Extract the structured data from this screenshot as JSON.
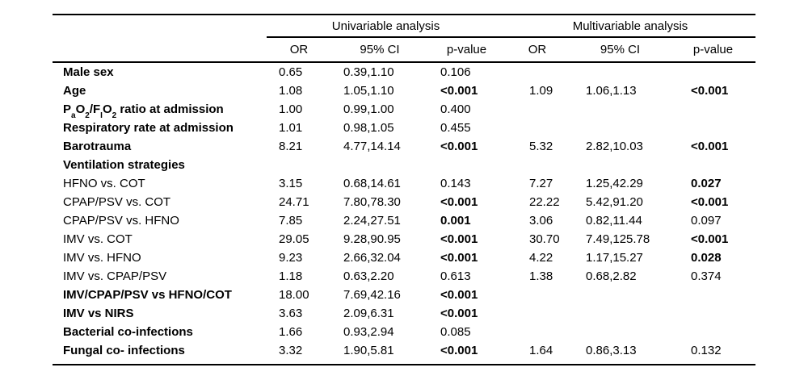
{
  "page": {
    "background_color": "#ffffff",
    "text_color": "#000000",
    "rule_color": "#000000"
  },
  "table": {
    "group_headers": [
      {
        "label": "Univariable analysis",
        "span": 3
      },
      {
        "label": "Multivariable analysis",
        "span": 3
      }
    ],
    "column_headers": [
      "OR",
      "95% CI",
      "p-value",
      "OR",
      "95% CI",
      "p-value"
    ],
    "rows": [
      {
        "label": "Male sex",
        "bold": true,
        "uni": {
          "or": "0.65",
          "ci": "0.39,1.10",
          "p": "0.106",
          "p_bold": false
        },
        "multi": {
          "or": "",
          "ci": "",
          "p": "",
          "p_bold": false
        }
      },
      {
        "label": "Age",
        "bold": true,
        "uni": {
          "or": "1.08",
          "ci": "1.05,1.10",
          "p": "<0.001",
          "p_bold": true
        },
        "multi": {
          "or": "1.09",
          "ci": "1.06,1.13",
          "p": "<0.001",
          "p_bold": true
        }
      },
      {
        "label": "PaO2/FIO2 ratio at admission",
        "bold": true,
        "label_segments": [
          {
            "text": "P"
          },
          {
            "text": "a",
            "sub": true
          },
          {
            "text": "O"
          },
          {
            "text": "2",
            "sub": true
          },
          {
            "text": "/F"
          },
          {
            "text": "I",
            "sub": true
          },
          {
            "text": "O"
          },
          {
            "text": "2",
            "sub": true
          },
          {
            "text": " ratio at admission"
          }
        ],
        "uni": {
          "or": "1.00",
          "ci": "0.99,1.00",
          "p": "0.400",
          "p_bold": false
        },
        "multi": {
          "or": "",
          "ci": "",
          "p": "",
          "p_bold": false
        }
      },
      {
        "label": "Respiratory rate at admission",
        "bold": true,
        "uni": {
          "or": "1.01",
          "ci": "0.98,1.05",
          "p": "0.455",
          "p_bold": false
        },
        "multi": {
          "or": "",
          "ci": "",
          "p": "",
          "p_bold": false
        }
      },
      {
        "label": "Barotrauma",
        "bold": true,
        "uni": {
          "or": "8.21",
          "ci": "4.77,14.14",
          "p": "<0.001",
          "p_bold": true
        },
        "multi": {
          "or": "5.32",
          "ci": "2.82,10.03",
          "p": "<0.001",
          "p_bold": true
        }
      },
      {
        "label": "Ventilation strategies",
        "bold": true,
        "uni": {
          "or": "",
          "ci": "",
          "p": "",
          "p_bold": false
        },
        "multi": {
          "or": "",
          "ci": "",
          "p": "",
          "p_bold": false
        }
      },
      {
        "label": "HFNO vs. COT",
        "bold": false,
        "uni": {
          "or": "3.15",
          "ci": "0.68,14.61",
          "p": "0.143",
          "p_bold": false
        },
        "multi": {
          "or": "7.27",
          "ci": "1.25,42.29",
          "p": "0.027",
          "p_bold": true
        }
      },
      {
        "label": "CPAP/PSV vs. COT",
        "bold": false,
        "uni": {
          "or": "24.71",
          "ci": "7.80,78.30",
          "p": "<0.001",
          "p_bold": true
        },
        "multi": {
          "or": "22.22",
          "ci": "5.42,91.20",
          "p": "<0.001",
          "p_bold": true
        }
      },
      {
        "label": "CPAP/PSV vs. HFNO",
        "bold": false,
        "uni": {
          "or": "7.85",
          "ci": "2.24,27.51",
          "p": "0.001",
          "p_bold": true
        },
        "multi": {
          "or": "3.06",
          "ci": "0.82,11.44",
          "p": "0.097",
          "p_bold": false
        }
      },
      {
        "label": "IMV vs. COT",
        "bold": false,
        "uni": {
          "or": "29.05",
          "ci": "9.28,90.95",
          "p": "<0.001",
          "p_bold": true
        },
        "multi": {
          "or": "30.70",
          "ci": "7.49,125.78",
          "p": "<0.001",
          "p_bold": true
        }
      },
      {
        "label": "IMV vs. HFNO",
        "bold": false,
        "uni": {
          "or": "9.23",
          "ci": "2.66,32.04",
          "p": "<0.001",
          "p_bold": true
        },
        "multi": {
          "or": "4.22",
          "ci": "1.17,15.27",
          "p": "0.028",
          "p_bold": true
        }
      },
      {
        "label": "IMV vs. CPAP/PSV",
        "bold": false,
        "uni": {
          "or": "1.18",
          "ci": "0.63,2.20",
          "p": "0.613",
          "p_bold": false
        },
        "multi": {
          "or": "1.38",
          "ci": "0.68,2.82",
          "p": "0.374",
          "p_bold": false
        }
      },
      {
        "label": "IMV/CPAP/PSV vs HFNO/COT",
        "bold": true,
        "uni": {
          "or": "18.00",
          "ci": "7.69,42.16",
          "p": "<0.001",
          "p_bold": true
        },
        "multi": {
          "or": "",
          "ci": "",
          "p": "",
          "p_bold": false
        }
      },
      {
        "label": "IMV vs NIRS",
        "bold": true,
        "uni": {
          "or": "3.63",
          "ci": "2.09,6.31",
          "p": "<0.001",
          "p_bold": true
        },
        "multi": {
          "or": "",
          "ci": "",
          "p": "",
          "p_bold": false
        }
      },
      {
        "label": "Bacterial co-infections",
        "bold": true,
        "uni": {
          "or": "1.66",
          "ci": "0.93,2.94",
          "p": "0.085",
          "p_bold": false
        },
        "multi": {
          "or": "",
          "ci": "",
          "p": "",
          "p_bold": false
        }
      },
      {
        "label": "Fungal co- infections",
        "bold": true,
        "uni": {
          "or": "3.32",
          "ci": "1.90,5.81",
          "p": "<0.001",
          "p_bold": true
        },
        "multi": {
          "or": "1.64",
          "ci": "0.86,3.13",
          "p": "0.132",
          "p_bold": false
        }
      }
    ]
  }
}
